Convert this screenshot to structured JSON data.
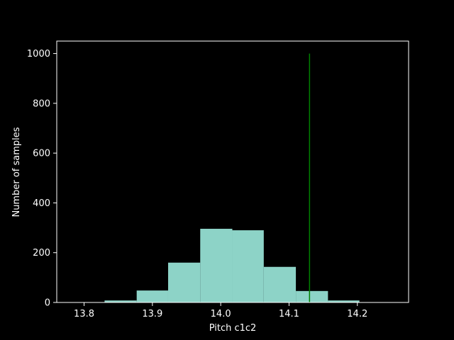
{
  "chart_data": {
    "type": "histogram",
    "xlabel": "Pitch c1c2",
    "ylabel": "Number of samples",
    "xlim": [
      13.76,
      14.275
    ],
    "ylim": [
      0,
      1050
    ],
    "xticks": [
      13.8,
      13.9,
      14.0,
      14.1,
      14.2
    ],
    "xtick_labels": [
      "13.8",
      "13.9",
      "14.0",
      "14.1",
      "14.2"
    ],
    "yticks": [
      0,
      200,
      400,
      600,
      800,
      1000
    ],
    "ytick_labels": [
      "0",
      "200",
      "400",
      "600",
      "800",
      "1000"
    ],
    "bins": [
      {
        "start": 13.83,
        "end": 13.877,
        "count": 8
      },
      {
        "start": 13.877,
        "end": 13.923,
        "count": 48
      },
      {
        "start": 13.923,
        "end": 13.97,
        "count": 160
      },
      {
        "start": 13.97,
        "end": 14.017,
        "count": 296
      },
      {
        "start": 14.017,
        "end": 14.063,
        "count": 290
      },
      {
        "start": 14.063,
        "end": 14.11,
        "count": 143
      },
      {
        "start": 14.11,
        "end": 14.157,
        "count": 46
      },
      {
        "start": 14.157,
        "end": 14.203,
        "count": 8
      }
    ],
    "bar_color": "#8dd3c7",
    "reference_line": {
      "x": 14.13,
      "y_from": 0,
      "y_to": 1000,
      "color": "#008000"
    },
    "grid": false,
    "background": "#000000",
    "axis_color": "#ffffff"
  }
}
